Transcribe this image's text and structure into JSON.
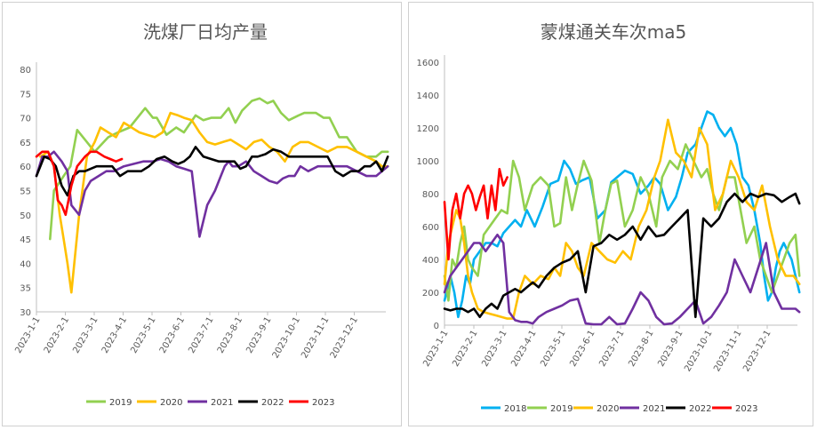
{
  "chart_data": [
    {
      "type": "line",
      "title": "洗煤厂日均产量",
      "ylim": [
        30,
        80
      ],
      "yticks": [
        "30",
        "35",
        "40",
        "45",
        "50",
        "55",
        "60",
        "65",
        "70",
        "75",
        "80"
      ],
      "x_labels": [
        "2023-1-1",
        "2023-2-1",
        "2023-3-1",
        "2023-4-1",
        "2023-5-1",
        "2023-6-1",
        "2023-7-1",
        "2023-8-1",
        "2023-9-1",
        "2023-10-1",
        "2023-11-1",
        "2023-12-1"
      ],
      "x_range": [
        0,
        360
      ],
      "legend": "bottom",
      "series": [
        {
          "name": "2019",
          "color": "#92d050",
          "x": [
            14,
            18,
            28,
            35,
            42,
            52,
            60,
            74,
            84,
            96,
            112,
            120,
            124,
            134,
            144,
            152,
            164,
            172,
            180,
            190,
            198,
            205,
            212,
            222,
            230,
            238,
            244,
            252,
            260,
            270,
            276,
            288,
            296,
            302,
            312,
            320,
            330,
            340,
            350,
            356,
            362
          ],
          "y": [
            45,
            55,
            58,
            60,
            67.5,
            65,
            63,
            66,
            67,
            68,
            72,
            70,
            70,
            66.5,
            68,
            67,
            70.5,
            69.5,
            70,
            70,
            72,
            69,
            71.5,
            73.5,
            74,
            73,
            73.5,
            71,
            69.5,
            70.5,
            71,
            71,
            70,
            70,
            66,
            66,
            63,
            62,
            62,
            63,
            63
          ]
        },
        {
          "name": "2020",
          "color": "#ffc000",
          "x": [
            4,
            12,
            18,
            24,
            28,
            32,
            36,
            44,
            52,
            60,
            66,
            74,
            82,
            90,
            98,
            106,
            114,
            122,
            130,
            138,
            146,
            152,
            160,
            168,
            176,
            184,
            192,
            200,
            208,
            216,
            224,
            232,
            240,
            248,
            256,
            264,
            272,
            280,
            290,
            300,
            310,
            320,
            330,
            340,
            350,
            356,
            362
          ],
          "y": [
            62,
            63,
            60,
            50,
            45,
            40,
            34,
            50,
            62,
            65,
            68,
            67,
            66,
            69,
            68,
            67,
            66.5,
            66,
            67,
            71,
            70.5,
            70,
            69.5,
            67,
            65,
            64.5,
            65,
            65.5,
            64.5,
            63.5,
            65,
            65.5,
            64,
            63,
            61,
            64,
            65,
            65,
            64,
            63,
            64,
            64,
            63,
            62,
            61,
            60,
            60
          ]
        },
        {
          "name": "2021",
          "color": "#7030a0",
          "x": [
            0,
            6,
            12,
            18,
            26,
            32,
            36,
            44,
            50,
            56,
            64,
            72,
            80,
            90,
            100,
            110,
            120,
            128,
            136,
            144,
            152,
            160,
            168,
            176,
            184,
            190,
            194,
            198,
            202,
            208,
            216,
            224,
            232,
            240,
            248,
            254,
            260,
            266,
            272,
            280,
            290,
            300,
            310,
            320,
            330,
            340,
            350,
            356,
            362
          ],
          "y": [
            58,
            62,
            62,
            63,
            61,
            59,
            52,
            50,
            55,
            57,
            58,
            59,
            59,
            60,
            60.5,
            61,
            61,
            61.5,
            61,
            60,
            59.5,
            59,
            45.5,
            52,
            55,
            58,
            60,
            61,
            60,
            60,
            61,
            59,
            58,
            57,
            56.5,
            57.5,
            58,
            58,
            60,
            59,
            60,
            60,
            60,
            60,
            59,
            58,
            58,
            59,
            60
          ]
        },
        {
          "name": "2022",
          "color": "#000000",
          "x": [
            0,
            8,
            14,
            20,
            26,
            32,
            38,
            44,
            50,
            56,
            62,
            70,
            78,
            86,
            94,
            100,
            108,
            116,
            124,
            132,
            140,
            146,
            152,
            158,
            164,
            172,
            180,
            188,
            196,
            204,
            210,
            216,
            222,
            228,
            236,
            244,
            252,
            260,
            268,
            276,
            284,
            292,
            300,
            308,
            316,
            324,
            332,
            338,
            344,
            350,
            356,
            362
          ],
          "y": [
            58,
            62,
            61.5,
            60,
            56,
            54,
            58,
            59,
            59,
            59.5,
            60,
            60,
            60,
            58,
            59,
            59,
            59,
            60,
            61.5,
            62,
            61,
            60.5,
            61,
            62,
            64,
            62,
            61.5,
            61,
            61,
            61,
            59.5,
            60,
            62,
            62,
            62.5,
            63.5,
            63,
            62,
            62,
            62,
            62,
            62,
            62,
            59,
            58,
            59,
            59,
            60,
            60,
            61,
            59,
            62
          ]
        },
        {
          "name": "2023",
          "color": "#ff0000",
          "x": [
            0,
            6,
            12,
            18,
            22,
            26,
            30,
            36,
            42,
            50,
            56,
            62,
            70,
            76,
            82,
            88
          ],
          "y": [
            62,
            63,
            63,
            60,
            53,
            52,
            50,
            56,
            60,
            62,
            63,
            63,
            62,
            61.5,
            61,
            61.5
          ]
        }
      ]
    },
    {
      "type": "line",
      "title": "蒙煤通关车次ma5",
      "ylim": [
        0,
        1600
      ],
      "yticks": [
        "0",
        "200",
        "400",
        "600",
        "800",
        "1000",
        "1200",
        "1400",
        "1600"
      ],
      "x_labels": [
        "2023-1-1",
        "2023-2-1",
        "2023-3-1",
        "2023-4-1",
        "2023-5-1",
        "2023-6-1",
        "2023-7-1",
        "2023-8-1",
        "2023-9-1",
        "2023-10-1",
        "2023-11-1",
        "2023-12-1"
      ],
      "x_range": [
        0,
        360
      ],
      "legend": "bottom",
      "series": [
        {
          "name": "2018",
          "color": "#00b0f0",
          "x": [
            0,
            6,
            10,
            14,
            18,
            22,
            26,
            30,
            36,
            42,
            48,
            54,
            60,
            66,
            72,
            78,
            84,
            92,
            100,
            108,
            116,
            122,
            128,
            134,
            140,
            148,
            156,
            164,
            170,
            176,
            184,
            192,
            200,
            208,
            214,
            220,
            228,
            236,
            242,
            248,
            256,
            262,
            268,
            274,
            280,
            286,
            292,
            298,
            304,
            310,
            316,
            322,
            326,
            330,
            334,
            338,
            342,
            346,
            350,
            354,
            358,
            362
          ],
          "y": [
            150,
            300,
            200,
            50,
            150,
            300,
            250,
            400,
            450,
            500,
            500,
            480,
            560,
            600,
            640,
            600,
            700,
            600,
            720,
            860,
            880,
            1000,
            950,
            860,
            880,
            900,
            650,
            700,
            870,
            900,
            940,
            920,
            800,
            850,
            900,
            860,
            700,
            780,
            900,
            1050,
            1100,
            1200,
            1300,
            1280,
            1200,
            1150,
            1200,
            1100,
            900,
            850,
            700,
            500,
            300,
            150,
            200,
            350,
            450,
            500,
            450,
            400,
            300,
            200
          ]
        },
        {
          "name": "2019",
          "color": "#92d050",
          "x": [
            0,
            4,
            8,
            12,
            16,
            20,
            24,
            28,
            34,
            40,
            46,
            52,
            58,
            64,
            70,
            76,
            82,
            90,
            98,
            106,
            112,
            118,
            124,
            130,
            136,
            142,
            150,
            158,
            164,
            170,
            176,
            184,
            192,
            200,
            208,
            216,
            222,
            230,
            238,
            246,
            254,
            262,
            268,
            274,
            280,
            288,
            296,
            302,
            308,
            316,
            322,
            328,
            334,
            340,
            346,
            352,
            358,
            362
          ],
          "y": [
            300,
            150,
            400,
            350,
            500,
            600,
            400,
            350,
            300,
            550,
            600,
            650,
            700,
            680,
            1000,
            900,
            700,
            850,
            900,
            850,
            600,
            620,
            900,
            700,
            860,
            1000,
            880,
            500,
            700,
            860,
            880,
            600,
            700,
            900,
            800,
            600,
            900,
            1000,
            950,
            1100,
            1000,
            900,
            950,
            800,
            700,
            900,
            900,
            700,
            500,
            600,
            400,
            300,
            200,
            300,
            400,
            500,
            550,
            300
          ]
        },
        {
          "name": "2020",
          "color": "#ffc000",
          "x": [
            0,
            4,
            8,
            12,
            16,
            20,
            24,
            28,
            34,
            40,
            46,
            52,
            58,
            64,
            70,
            76,
            82,
            90,
            98,
            106,
            112,
            118,
            124,
            130,
            136,
            142,
            150,
            158,
            166,
            174,
            182,
            190,
            198,
            206,
            214,
            220,
            228,
            236,
            244,
            252,
            260,
            268,
            276,
            284,
            292,
            300,
            308,
            316,
            324,
            332,
            340,
            348,
            356,
            362
          ],
          "y": [
            250,
            500,
            600,
            700,
            650,
            500,
            300,
            200,
            100,
            80,
            70,
            60,
            50,
            40,
            40,
            200,
            300,
            250,
            300,
            280,
            350,
            300,
            500,
            450,
            350,
            300,
            500,
            450,
            400,
            380,
            450,
            400,
            600,
            700,
            900,
            1000,
            1250,
            1050,
            1000,
            900,
            1200,
            1100,
            700,
            800,
            1000,
            900,
            750,
            700,
            850,
            600,
            400,
            300,
            300,
            250
          ]
        },
        {
          "name": "2021",
          "color": "#7030a0",
          "x": [
            0,
            6,
            12,
            18,
            24,
            30,
            36,
            42,
            48,
            54,
            60,
            66,
            72,
            78,
            84,
            90,
            96,
            104,
            112,
            120,
            128,
            136,
            144,
            152,
            160,
            168,
            176,
            184,
            192,
            200,
            208,
            216,
            224,
            232,
            240,
            248,
            256,
            264,
            272,
            280,
            288,
            296,
            304,
            312,
            320,
            328,
            336,
            344,
            352,
            358,
            362
          ],
          "y": [
            200,
            300,
            350,
            400,
            450,
            500,
            500,
            450,
            500,
            550,
            500,
            80,
            30,
            20,
            20,
            10,
            50,
            80,
            100,
            120,
            150,
            160,
            10,
            5,
            5,
            50,
            5,
            10,
            100,
            200,
            150,
            50,
            5,
            10,
            50,
            100,
            150,
            10,
            50,
            120,
            200,
            400,
            300,
            200,
            350,
            500,
            200,
            100,
            100,
            100,
            80
          ]
        },
        {
          "name": "2022",
          "color": "#000000",
          "x": [
            0,
            6,
            12,
            18,
            24,
            30,
            36,
            42,
            48,
            54,
            60,
            66,
            72,
            78,
            84,
            90,
            96,
            104,
            112,
            120,
            128,
            136,
            144,
            152,
            160,
            168,
            176,
            184,
            192,
            200,
            208,
            216,
            224,
            232,
            240,
            248,
            256,
            264,
            272,
            280,
            288,
            296,
            304,
            312,
            320,
            328,
            336,
            344,
            352,
            358,
            362
          ],
          "y": [
            100,
            90,
            100,
            100,
            80,
            100,
            50,
            100,
            130,
            100,
            180,
            200,
            220,
            200,
            230,
            260,
            230,
            300,
            350,
            380,
            400,
            450,
            200,
            480,
            500,
            550,
            520,
            550,
            600,
            520,
            600,
            540,
            550,
            600,
            650,
            700,
            50,
            650,
            600,
            650,
            750,
            800,
            750,
            800,
            780,
            800,
            790,
            750,
            780,
            800,
            740
          ]
        },
        {
          "name": "2023",
          "color": "#ff0000",
          "x": [
            0,
            4,
            8,
            12,
            16,
            20,
            24,
            28,
            32,
            36,
            40,
            44,
            48,
            52,
            56,
            60,
            64
          ],
          "y": [
            750,
            400,
            700,
            800,
            650,
            800,
            850,
            800,
            700,
            780,
            850,
            650,
            850,
            700,
            950,
            850,
            900
          ]
        }
      ]
    }
  ]
}
